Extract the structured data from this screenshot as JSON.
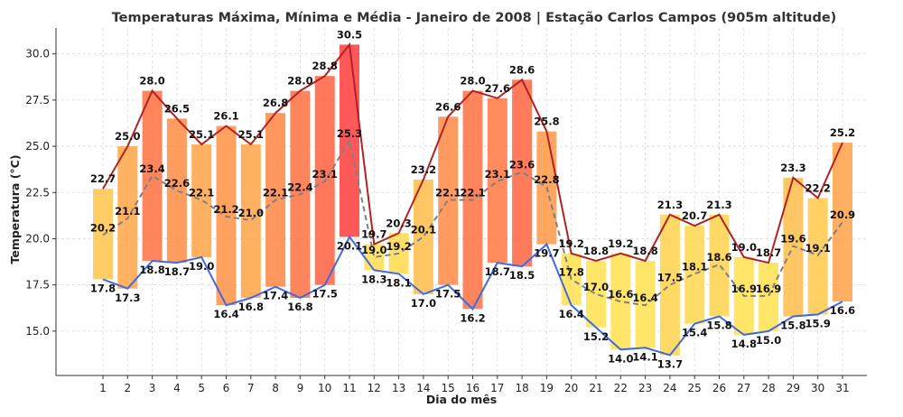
{
  "chart_data": {
    "type": "bar",
    "title": "Temperaturas Máxima, Mínima e Média - Janeiro de 2008 | Estação Carlos Campos (905m altitude)",
    "xlabel": "Dia do mês",
    "ylabel": "Temperatura (°C)",
    "ylim": [
      12.6,
      31.4
    ],
    "yticks": [
      15.0,
      17.5,
      20.0,
      22.5,
      25.0,
      27.5,
      30.0
    ],
    "ytick_labels": [
      "15.0",
      "17.5",
      "20.0",
      "22.5",
      "25.0",
      "27.5",
      "30.0"
    ],
    "grid": true,
    "categories": [
      "1",
      "2",
      "3",
      "4",
      "5",
      "6",
      "7",
      "8",
      "9",
      "10",
      "11",
      "12",
      "13",
      "14",
      "15",
      "16",
      "17",
      "18",
      "19",
      "20",
      "21",
      "22",
      "23",
      "24",
      "25",
      "26",
      "27",
      "28",
      "29",
      "30",
      "31"
    ],
    "series": [
      {
        "key": "max",
        "values": [
          22.7,
          25.0,
          28.0,
          26.5,
          25.1,
          26.1,
          25.1,
          26.8,
          28.0,
          28.8,
          30.5,
          19.7,
          20.3,
          23.2,
          26.6,
          28.0,
          27.6,
          28.6,
          25.8,
          19.2,
          18.8,
          19.2,
          18.8,
          21.3,
          20.7,
          21.3,
          19.0,
          18.7,
          23.3,
          22.2,
          25.2
        ]
      },
      {
        "key": "min",
        "values": [
          17.8,
          17.3,
          18.8,
          18.7,
          19.0,
          16.4,
          16.8,
          17.4,
          16.8,
          17.5,
          20.1,
          18.3,
          18.1,
          17.0,
          17.5,
          16.2,
          18.7,
          18.5,
          19.7,
          16.4,
          15.2,
          14.0,
          14.1,
          13.7,
          15.4,
          15.8,
          14.8,
          15.0,
          15.8,
          15.9,
          16.6
        ]
      },
      {
        "key": "mean",
        "values": [
          20.2,
          21.1,
          23.4,
          22.6,
          22.1,
          21.2,
          21.0,
          22.1,
          22.4,
          23.1,
          25.3,
          19.0,
          19.2,
          20.1,
          22.1,
          22.1,
          23.1,
          23.6,
          22.8,
          17.8,
          17.0,
          16.6,
          16.4,
          17.5,
          18.1,
          18.6,
          16.9,
          16.9,
          19.6,
          19.1,
          20.9
        ]
      }
    ],
    "colors": {
      "max_line": "#b22222",
      "min_line": "#4169e1",
      "mean_line": "#808080",
      "bar_low": "#ffe14d",
      "bar_high": "#ff3b3b"
    }
  }
}
